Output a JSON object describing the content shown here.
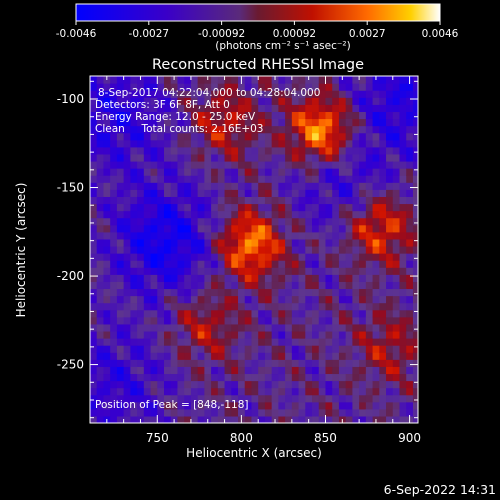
{
  "colorbar": {
    "ticks": [
      "-0.0046",
      "-0.0027",
      "-0.00092",
      "0.00092",
      "0.0027",
      "0.0046"
    ],
    "unit_label": "(photons cm⁻² s⁻¹ asec⁻²)"
  },
  "chart_data": {
    "type": "heatmap",
    "title": "Reconstructed RHESSI Image",
    "xlabel": "Heliocentric X (arcsec)",
    "ylabel": "Heliocentric Y (arcsec)",
    "xlim": [
      710,
      905
    ],
    "ylim": [
      -283,
      -87
    ],
    "xticks": [
      750,
      800,
      850,
      900
    ],
    "yticks": [
      -100,
      -150,
      -200,
      -250
    ],
    "colorbar_range": [
      -0.0046,
      0.0046
    ],
    "colormap": "blue-purple-red-yellow-white",
    "annotations": [
      "8-Sep-2017 04:22:04.000 to 04:28:04.000",
      "Detectors: 3F 6F 8F, Att 0",
      "Energy Range: 12.0 - 25.0 keV",
      "Clean     Total counts: 2.16E+03",
      "Position of Peak = [848,-118]"
    ],
    "peaks": [
      {
        "x": 848,
        "y": -118,
        "value": 0.0046
      },
      {
        "x": 805,
        "y": -182,
        "value": 0.004
      },
      {
        "x": 882,
        "y": -172,
        "value": 0.0032
      },
      {
        "x": 790,
        "y": -113,
        "value": 0.0022
      },
      {
        "x": 778,
        "y": -228,
        "value": 0.002
      },
      {
        "x": 888,
        "y": -240,
        "value": 0.0018
      }
    ],
    "troughs": [
      {
        "x": 755,
        "y": -180,
        "value": -0.003
      },
      {
        "x": 860,
        "y": -145,
        "value": -0.0018
      },
      {
        "x": 725,
        "y": -110,
        "value": -0.0022
      },
      {
        "x": 895,
        "y": -100,
        "value": -0.0022
      },
      {
        "x": 725,
        "y": -260,
        "value": -0.0018
      }
    ]
  },
  "footer": {
    "timestamp": "6-Sep-2022 14:31"
  }
}
